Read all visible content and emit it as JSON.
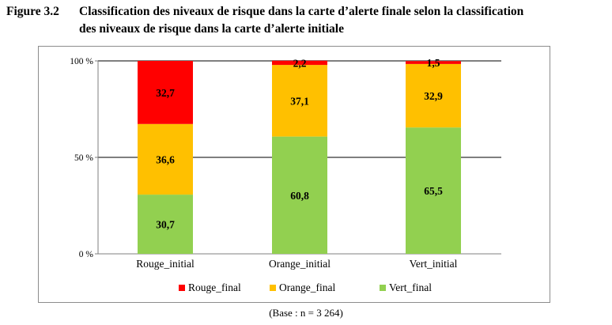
{
  "figure": {
    "number": "Figure 3.2",
    "title_line1": "Classification des niveaux de risque dans la carte d’alerte finale selon la classification",
    "title_line2": "des niveaux de risque dans la carte d’alerte initiale",
    "base_note": "(Base : n = 3 264)"
  },
  "colors": {
    "Rouge_final": "#ff0000",
    "Orange_final": "#ffc000",
    "Vert_final": "#92d050"
  },
  "chart_data": {
    "type": "bar",
    "stacked": true,
    "percent_stacked": true,
    "categories": [
      "Rouge_initial",
      "Orange_initial",
      "Vert_initial"
    ],
    "series": [
      {
        "name": "Vert_final",
        "values": [
          30.7,
          60.8,
          65.5
        ],
        "labels": [
          "30,7",
          "60,8",
          "65,5"
        ]
      },
      {
        "name": "Orange_final",
        "values": [
          36.6,
          37.1,
          32.9
        ],
        "labels": [
          "36,6",
          "37,1",
          "32,9"
        ]
      },
      {
        "name": "Rouge_final",
        "values": [
          32.7,
          2.2,
          1.5
        ],
        "labels": [
          "32,7",
          "2,2",
          "1,5"
        ]
      }
    ],
    "yticks": [
      "0 %",
      "50 %",
      "100 %"
    ],
    "ylim": [
      0,
      100
    ],
    "gridlines": [
      50,
      100
    ],
    "legend": {
      "position": "bottom",
      "order": [
        "Rouge_final",
        "Orange_final",
        "Vert_final"
      ]
    }
  }
}
